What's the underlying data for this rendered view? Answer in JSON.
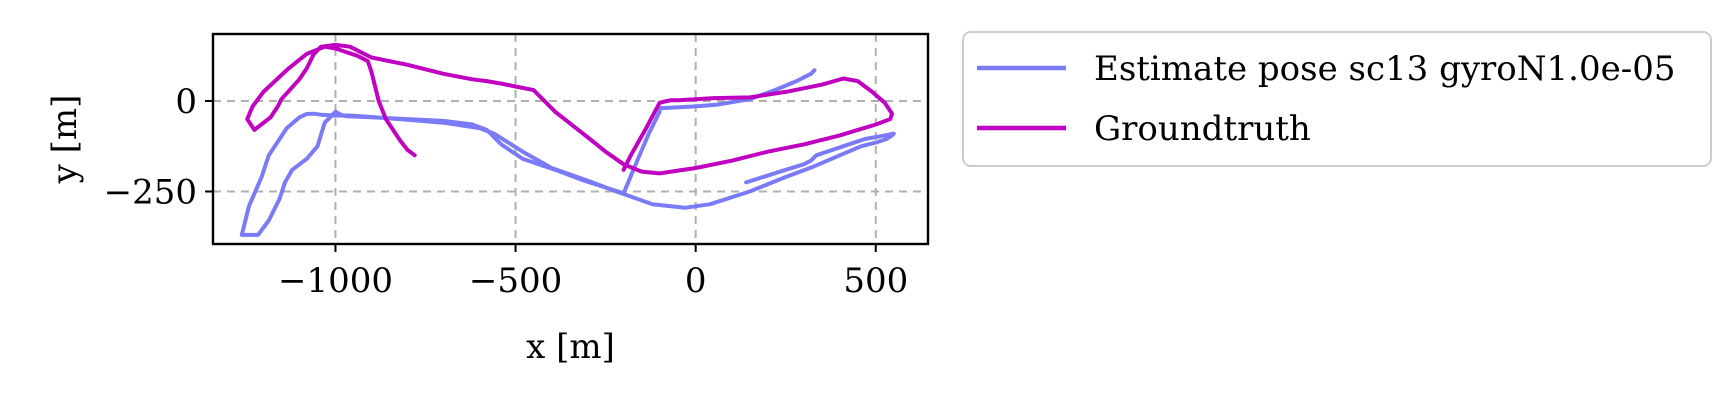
{
  "chart_data": {
    "type": "line",
    "title": "",
    "xlabel": "x [m]",
    "ylabel": "y [m]",
    "xlim": [
      -1340,
      645
    ],
    "ylim": [
      -395,
      185
    ],
    "xticks": [
      -1000,
      -500,
      0,
      500
    ],
    "xtick_labels": [
      "−1000",
      "−500",
      "0",
      "500"
    ],
    "yticks": [
      -250,
      0
    ],
    "ytick_labels": [
      "−250",
      "0"
    ],
    "grid": true,
    "legend_position": "outside-right",
    "series": [
      {
        "name": "Estimate pose sc13 gyroN1.0e-05",
        "color": "#7b7bf7",
        "x": [
          330,
          320,
          280,
          220,
          150,
          60,
          0,
          -100,
          -100,
          -110,
          -130,
          -160,
          -200,
          -310,
          -390,
          -480,
          -540,
          -580,
          -620,
          -700,
          -800,
          -900,
          -970,
          -980,
          -1000,
          -1030,
          -1050,
          -1080,
          -1120,
          -1140,
          -1155,
          -1185,
          -1215,
          -1260,
          -1240,
          -1205,
          -1185,
          -1135,
          -1100,
          -1080,
          -1060,
          -1040,
          -1005,
          -980,
          -960,
          -930,
          -890,
          -800,
          -700,
          -600,
          -560,
          -480,
          -400,
          -300,
          -220,
          -120,
          -30,
          40,
          150,
          250,
          330,
          400,
          460,
          500,
          530,
          545,
          550,
          525,
          470,
          410,
          380,
          335,
          320,
          300,
          250,
          140
        ],
        "y": [
          85,
          75,
          55,
          30,
          5,
          -10,
          -15,
          -20,
          -30,
          -50,
          -90,
          -160,
          -255,
          -220,
          -190,
          -160,
          -120,
          -80,
          -65,
          -55,
          -50,
          -45,
          -42,
          -40,
          -30,
          -60,
          -125,
          -160,
          -190,
          -225,
          -270,
          -330,
          -370,
          -370,
          -290,
          -210,
          -150,
          -75,
          -45,
          -36,
          -35,
          -38,
          -40,
          -40,
          -40,
          -42,
          -45,
          -52,
          -60,
          -75,
          -90,
          -140,
          -185,
          -220,
          -250,
          -285,
          -295,
          -285,
          -250,
          -210,
          -180,
          -150,
          -125,
          -115,
          -105,
          -95,
          -90,
          -95,
          -105,
          -125,
          -135,
          -150,
          -165,
          -175,
          -190,
          -225
        ]
      },
      {
        "name": "Groundtruth",
        "color": "#c000c0",
        "x": [
          -200,
          -180,
          -140,
          -100,
          -80,
          -70,
          -50,
          0,
          50,
          150,
          250,
          350,
          410,
          450,
          490,
          525,
          545,
          540,
          500,
          450,
          400,
          300,
          200,
          100,
          0,
          -100,
          -150,
          -200,
          -250,
          -300,
          -390,
          -450,
          -500,
          -540,
          -580,
          -620,
          -700,
          -800,
          -900,
          -960,
          -1000,
          -1040,
          -1060,
          -1080,
          -1100,
          -1150,
          -1160,
          -1180,
          -1225,
          -1245,
          -1230,
          -1200,
          -1130,
          -1080,
          -1030,
          -1000,
          -970,
          -940,
          -910,
          -900,
          -890,
          -880,
          -860,
          -840,
          -820,
          -800,
          -780
        ],
        "y": [
          -190,
          -150,
          -80,
          -5,
          0,
          2,
          2,
          5,
          8,
          10,
          25,
          45,
          62,
          55,
          25,
          -5,
          -35,
          -50,
          -65,
          -80,
          -95,
          -120,
          -140,
          -165,
          -185,
          -200,
          -195,
          -175,
          -140,
          -100,
          -30,
          30,
          40,
          48,
          55,
          60,
          75,
          100,
          120,
          150,
          155,
          150,
          130,
          90,
          60,
          5,
          -15,
          -45,
          -80,
          -50,
          -15,
          25,
          90,
          130,
          150,
          145,
          135,
          125,
          110,
          80,
          40,
          0,
          -50,
          -80,
          -110,
          -135,
          -150
        ]
      }
    ]
  }
}
